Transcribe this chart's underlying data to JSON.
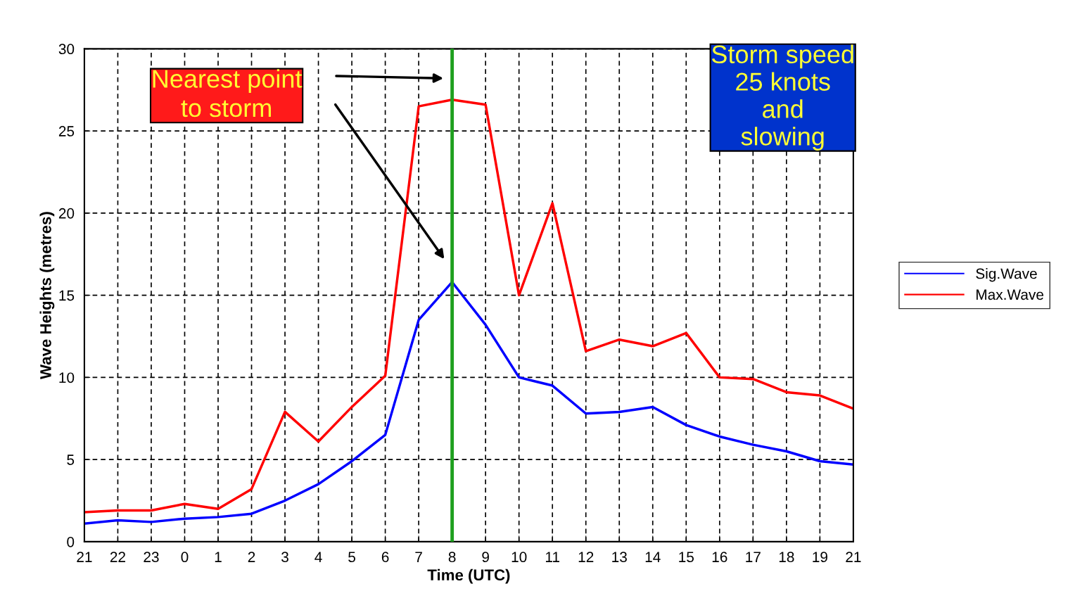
{
  "chart_data": {
    "type": "line",
    "xlabel": "Time (UTC)",
    "ylabel": "Wave Heights (metres)",
    "categories": [
      "21",
      "22",
      "23",
      "0",
      "1",
      "2",
      "3",
      "4",
      "5",
      "6",
      "7",
      "8",
      "9",
      "10",
      "11",
      "12",
      "13",
      "14",
      "15",
      "16",
      "17",
      "18",
      "19",
      "21"
    ],
    "series": [
      {
        "name": "Sig.Wave",
        "color": "#0000ff",
        "values": [
          1.1,
          1.3,
          1.2,
          1.4,
          1.5,
          1.7,
          2.5,
          3.5,
          4.9,
          6.5,
          13.5,
          15.8,
          13.2,
          10.0,
          9.5,
          7.8,
          7.9,
          8.2,
          7.1,
          6.4,
          5.9,
          5.5,
          4.9,
          4.7
        ]
      },
      {
        "name": "Max.Wave",
        "color": "#ff0000",
        "values": [
          1.8,
          1.9,
          1.9,
          2.3,
          2.0,
          3.2,
          7.9,
          6.1,
          8.2,
          10.1,
          26.5,
          26.9,
          26.6,
          15.0,
          20.6,
          11.6,
          12.3,
          11.9,
          12.7,
          10.0,
          9.9,
          9.1,
          8.9,
          8.1
        ]
      }
    ],
    "ylim": [
      0,
      30
    ],
    "yticks": [
      0,
      5,
      10,
      15,
      20,
      25,
      30
    ],
    "grid": true,
    "legend": "right",
    "line_style": "solid",
    "marker": "none",
    "ref_lines": [
      {
        "axis": "x",
        "value": "8",
        "color": "#1ea01e"
      }
    ],
    "annotations": [
      "Nearest point\nto storm",
      "Storm speed\n25 knots\nand\nslowing"
    ]
  }
}
